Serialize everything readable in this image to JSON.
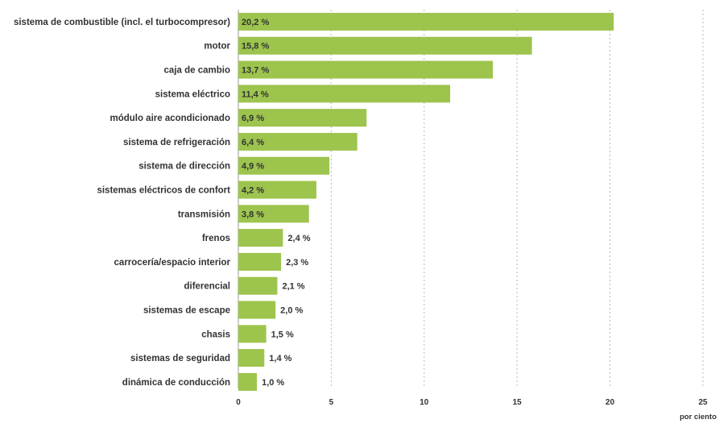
{
  "chart_data": {
    "type": "bar",
    "orientation": "horizontal",
    "categories": [
      "sistema de combustible (incl. el turbocompresor)",
      "motor",
      "caja de cambio",
      "sistema eléctrico",
      "módulo aire acondicionado",
      "sistema de refrigeración",
      "sistema de dirección",
      "sistemas eléctricos de confort",
      "transmisión",
      "frenos",
      "carrocería/espacio interior",
      "diferencial",
      "sistemas de escape",
      "chasis",
      "sistemas de seguridad",
      "dinámica de conducción"
    ],
    "values": [
      20.2,
      15.8,
      13.7,
      11.4,
      6.9,
      6.4,
      4.9,
      4.2,
      3.8,
      2.4,
      2.3,
      2.1,
      2.0,
      1.5,
      1.4,
      1.0
    ],
    "value_labels": [
      "20,2 %",
      "15,8 %",
      "13,7 %",
      "11,4 %",
      "6,9 %",
      "6,4 %",
      "4,9 %",
      "4,2 %",
      "3,8 %",
      "2,4 %",
      "2,3 %",
      "2,1 %",
      "2,0 %",
      "1,5 %",
      "1,4 %",
      "1,0 %"
    ],
    "xlim": [
      0,
      25
    ],
    "xticks": [
      0,
      5,
      10,
      15,
      20,
      25
    ],
    "xtick_labels": [
      "0",
      "5",
      "10",
      "15",
      "20",
      "25"
    ],
    "xunit": "por ciento",
    "title": "",
    "xlabel": "por ciento",
    "ylabel": "",
    "grid": true,
    "bar_color": "#9dc44d"
  }
}
